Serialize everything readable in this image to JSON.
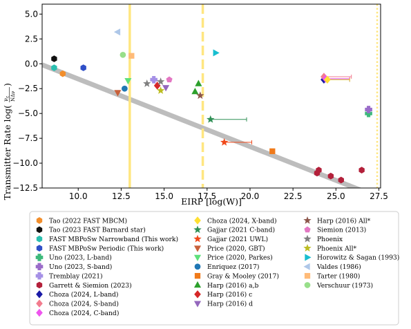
{
  "chart_data": {
    "type": "scatter",
    "xlabel": "EIRP [log(W)]",
    "ylabel": "Transmitter Rate log(ν_c / (N Δν))",
    "ylabel_main": "Transmitter Rate log(",
    "ylabel_frac_num": "ν",
    "ylabel_frac_num_sub": "c",
    "ylabel_frac_den": "NΔν",
    "ylabel_close": ")",
    "xlim": [
      7.9,
      27.6
    ],
    "ylim": [
      -12.5,
      6.0
    ],
    "xticks": [
      10.0,
      12.5,
      15.0,
      17.5,
      20.0,
      22.5,
      25.0,
      27.5
    ],
    "xtick_labels": [
      "10.0",
      "12.5",
      "15.0",
      "17.5",
      "20.0",
      "22.5",
      "25.0",
      "27.5"
    ],
    "yticks": [
      5.0,
      2.5,
      0.0,
      -2.5,
      -5.0,
      -7.5,
      -10.0,
      -12.5
    ],
    "ytick_labels": [
      "5.0",
      "2.5",
      "0.0",
      "−2.5",
      "−5.0",
      "−7.5",
      "−10.0",
      "−12.5"
    ],
    "grid": false,
    "legend_placement": "below",
    "trend_line": {
      "x": [
        7.9,
        27.6
      ],
      "y": [
        -0.1,
        -13.5
      ],
      "color": "#bdbdbd"
    },
    "vertical_lines": [
      {
        "x": 13.0,
        "color": "#ffe680",
        "style": "solid"
      },
      {
        "x": 17.25,
        "color": "#ffe680",
        "style": "dashed"
      },
      {
        "x": 27.4,
        "color": "#ffe680",
        "style": "dotted"
      }
    ],
    "series": [
      {
        "name": "Tao (2022 FAST MBCM)",
        "marker": "hexagon",
        "color": "#f28e2b",
        "points": [
          [
            9.1,
            -1.0
          ]
        ]
      },
      {
        "name": "Tao (2023 FAST Barnard star)",
        "marker": "hexagon",
        "color": "#111111",
        "points": [
          [
            8.6,
            0.5
          ]
        ]
      },
      {
        "name": "FAST MBPoSw Narrowband (This work)",
        "marker": "hexagon",
        "color": "#2bbfb0",
        "points": [
          [
            8.6,
            -0.4
          ]
        ]
      },
      {
        "name": "FAST MBPoSw Periodic (This work)",
        "marker": "hexagon",
        "color": "#2f4fc7",
        "points": [
          [
            10.3,
            -0.4
          ]
        ]
      },
      {
        "name": "Uno (2023, L-band)",
        "marker": "plus",
        "color": "#3cb97b",
        "points": [
          [
            26.9,
            -5.0
          ]
        ]
      },
      {
        "name": "Uno (2023, S-band)",
        "marker": "plus",
        "color": "#9a6cc9",
        "points": [
          [
            26.9,
            -4.6
          ]
        ]
      },
      {
        "name": "Tremblay (2021)",
        "marker": "plus",
        "color": "#a590e6",
        "points": [
          [
            14.4,
            -1.6
          ]
        ]
      },
      {
        "name": "Garrett & Siemion (2023)",
        "marker": "hexagon",
        "color": "#b3203a",
        "points": [
          [
            23.9,
            -11.0
          ],
          [
            24.0,
            -10.7
          ],
          [
            24.7,
            -11.3
          ],
          [
            25.3,
            -11.7
          ],
          [
            26.5,
            -10.7
          ]
        ]
      },
      {
        "name": "Choza (2024, L-band)",
        "marker": "diamond",
        "color": "#1a1aa6",
        "points": [
          [
            24.3,
            -1.6
          ]
        ],
        "xerr": [
          [
            0.0,
            1.5
          ]
        ]
      },
      {
        "name": "Choza (2024, S-band)",
        "marker": "diamond",
        "color": "#f27c8e",
        "points": [
          [
            24.3,
            -1.3
          ]
        ],
        "xerr": [
          [
            0.0,
            1.6
          ]
        ]
      },
      {
        "name": "Choza (2024, C-band)",
        "marker": "diamond",
        "color": "#ee55ee",
        "points": [
          [
            24.4,
            -1.5
          ]
        ],
        "xerr": [
          [
            0.0,
            1.4
          ]
        ]
      },
      {
        "name": "Choza (2024, X-band)",
        "marker": "diamond",
        "color": "#ffe033",
        "points": [
          [
            24.5,
            -1.6
          ]
        ],
        "xerr": [
          [
            0.0,
            1.3
          ]
        ]
      },
      {
        "name": "Gajjar (2021 C-band)",
        "marker": "star",
        "color": "#2f8f55",
        "points": [
          [
            17.7,
            -5.6
          ]
        ],
        "xerr": [
          [
            0.0,
            2.1
          ]
        ]
      },
      {
        "name": "Gajjar (2021 UWL)",
        "marker": "star",
        "color": "#f0481a",
        "points": [
          [
            18.5,
            -7.9
          ]
        ],
        "xerr": [
          [
            0.0,
            1.6
          ]
        ]
      },
      {
        "name": "Price (2020, GBT)",
        "marker": "triangle-down",
        "color": "#c8603a",
        "points": [
          [
            12.3,
            -2.9
          ]
        ]
      },
      {
        "name": "Price (2020, Parkes)",
        "marker": "triangle-down",
        "color": "#5ee07a",
        "points": [
          [
            12.9,
            -1.7
          ]
        ]
      },
      {
        "name": "Enriquez (2017)",
        "marker": "circle",
        "color": "#1f77b4",
        "points": [
          [
            12.7,
            -2.5
          ]
        ]
      },
      {
        "name": "Gray & Mooley (2017)",
        "marker": "square",
        "color": "#f07a1a",
        "points": [
          [
            21.3,
            -8.8
          ]
        ]
      },
      {
        "name": "Harp (2016) a,b",
        "marker": "triangle-up",
        "color": "#2ca02c",
        "points": [
          [
            16.8,
            -2.8
          ],
          [
            17.0,
            -2.0
          ]
        ]
      },
      {
        "name": "Harp (2016) c",
        "marker": "diamond",
        "color": "#d62728",
        "points": [
          [
            14.6,
            -2.2
          ]
        ]
      },
      {
        "name": "Harp (2016) d",
        "marker": "triangle-down",
        "color": "#9467bd",
        "points": [
          [
            15.1,
            -2.4
          ]
        ]
      },
      {
        "name": "Harp (2016) All*",
        "marker": "star",
        "color": "#8c564b",
        "points": [
          [
            17.1,
            -3.2
          ]
        ]
      },
      {
        "name": "Siemion (2013)",
        "marker": "pentagon",
        "color": "#e377c2",
        "points": [
          [
            15.3,
            -1.6
          ]
        ]
      },
      {
        "name": "Phoenix",
        "marker": "star",
        "color": "#7f7f7f",
        "points": [
          [
            14.0,
            -2.0
          ],
          [
            14.8,
            -1.8
          ]
        ]
      },
      {
        "name": "Phoenix All*",
        "marker": "star",
        "color": "#bcbd22",
        "points": [
          [
            14.8,
            -2.7
          ]
        ]
      },
      {
        "name": "Horowitz & Sagan (1993)",
        "marker": "triangle-right",
        "color": "#17becf",
        "points": [
          [
            18.0,
            1.1
          ]
        ]
      },
      {
        "name": "Valdes (1986)",
        "marker": "triangle-left",
        "color": "#aec7e8",
        "points": [
          [
            12.3,
            3.2
          ]
        ]
      },
      {
        "name": "Tarter (1980)",
        "marker": "square",
        "color": "#ffbb78",
        "points": [
          [
            13.1,
            0.8
          ]
        ]
      },
      {
        "name": "Verschuur (1973)",
        "marker": "circle",
        "color": "#98df8a",
        "points": [
          [
            12.6,
            0.9
          ]
        ]
      }
    ]
  }
}
